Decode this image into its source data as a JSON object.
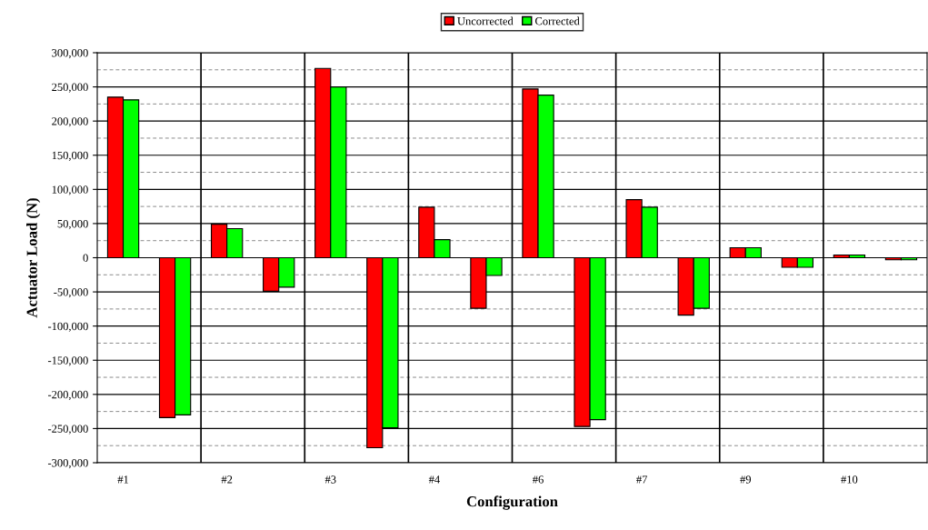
{
  "chart_data": {
    "type": "bar",
    "xlabel": "Configuration",
    "ylabel": "Actuator Load (N)",
    "categories": [
      "#1",
      null,
      "#2",
      null,
      "#3",
      null,
      "#4",
      null,
      "#6",
      null,
      "#7",
      null,
      "#9",
      null,
      "#10",
      null
    ],
    "series": [
      {
        "name": "Uncorrected",
        "color": "#ff0000",
        "values": [
          235000,
          -234000,
          49000,
          -49000,
          277000,
          -278000,
          74000,
          -74000,
          247000,
          -247000,
          85000,
          -84000,
          14600,
          -14000,
          4000,
          -3000
        ]
      },
      {
        "name": "Corrected",
        "color": "#00ff00",
        "values": [
          231000,
          -230000,
          42500,
          -43000,
          250000,
          -249000,
          26500,
          -26000,
          238000,
          -237000,
          74000,
          -74000,
          14600,
          -14000,
          4000,
          -3000
        ]
      }
    ],
    "ylim": [
      -300000,
      300000
    ],
    "yticks": [
      {
        "value": -300000,
        "label": "-300,000"
      },
      {
        "value": -275000,
        "label": null
      },
      {
        "value": -250000,
        "label": "-250,000"
      },
      {
        "value": -225000,
        "label": null
      },
      {
        "value": -200000,
        "label": "-200,000"
      },
      {
        "value": -175000,
        "label": null
      },
      {
        "value": -150000,
        "label": "-150,000"
      },
      {
        "value": -125000,
        "label": null
      },
      {
        "value": -100000,
        "label": "-100,000"
      },
      {
        "value": -75000,
        "label": null
      },
      {
        "value": -50000,
        "label": "-50,000"
      },
      {
        "value": -25000,
        "label": null
      },
      0,
      {
        "value": 25000,
        "label": null
      },
      {
        "value": 50000,
        "label": "50,000"
      },
      {
        "value": 75000,
        "label": null
      },
      {
        "value": 100000,
        "label": "100,000"
      },
      {
        "value": 125000,
        "label": null
      },
      {
        "value": 150000,
        "label": "150,000"
      },
      {
        "value": 175000,
        "label": null
      },
      {
        "value": 200000,
        "label": "200,000"
      },
      {
        "value": 225000,
        "label": null
      },
      {
        "value": 250000,
        "label": "250,000"
      },
      {
        "value": 275000,
        "label": null
      },
      {
        "value": 300000,
        "label": "300,000"
      }
    ],
    "grid": true,
    "legend": "top"
  }
}
